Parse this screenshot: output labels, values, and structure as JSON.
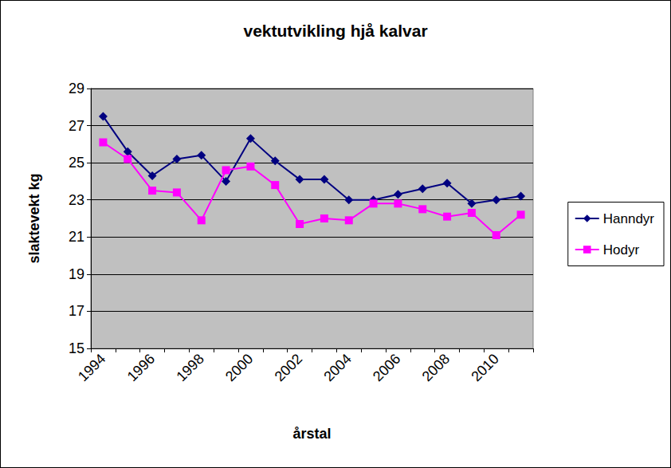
{
  "chart_data": {
    "type": "line",
    "title": "vektutvikling hjå kalvar",
    "x_label": "årstal",
    "y_label": "slaktevekt kg",
    "categories": [
      "1994",
      null,
      "1996",
      null,
      "1998",
      null,
      "2000",
      null,
      "2002",
      null,
      "2004",
      null,
      "2006",
      null,
      "2008",
      null,
      "2010",
      null
    ],
    "series": [
      {
        "name": "Hanndyr",
        "color": "#000080",
        "marker": "diamond",
        "values": [
          27.5,
          25.6,
          24.3,
          25.2,
          25.4,
          24.0,
          26.3,
          25.1,
          24.1,
          24.1,
          23.0,
          23.0,
          23.3,
          23.6,
          23.9,
          22.8,
          23.0,
          23.2
        ]
      },
      {
        "name": "Hodyr",
        "color": "#FF00FF",
        "marker": "square",
        "values": [
          26.1,
          25.2,
          23.5,
          23.4,
          21.9,
          24.6,
          24.8,
          23.8,
          21.7,
          22.0,
          21.9,
          22.8,
          22.8,
          22.5,
          22.1,
          22.3,
          21.1,
          22.2
        ]
      }
    ],
    "ylim": [
      15,
      29
    ],
    "yticks": [
      15,
      17,
      19,
      21,
      23,
      25,
      27,
      29
    ],
    "grid": true,
    "legend": "right"
  }
}
